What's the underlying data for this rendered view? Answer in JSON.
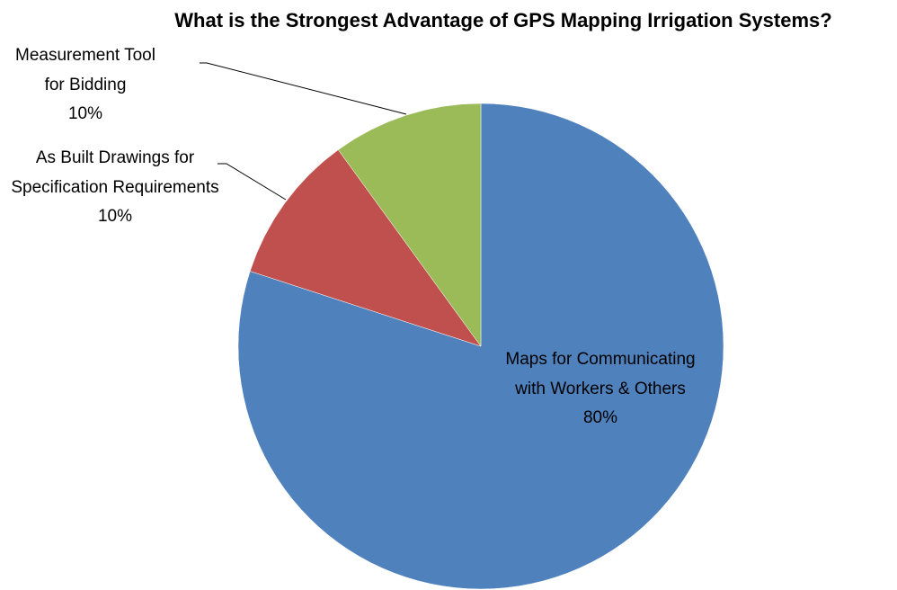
{
  "chart_data": {
    "type": "pie",
    "title": "What is the Strongest Advantage of GPS Mapping Irrigation Systems?",
    "categories": [
      "Maps for Communicating with Workers & Others",
      "As Built Drawings for Specification Requirements",
      "Measurement Tool for Bidding"
    ],
    "values": [
      80,
      10,
      10
    ],
    "value_labels": [
      "80%",
      "10%",
      "10%"
    ],
    "colors": [
      "#4f81bd",
      "#c0504d",
      "#9bbb59"
    ]
  }
}
